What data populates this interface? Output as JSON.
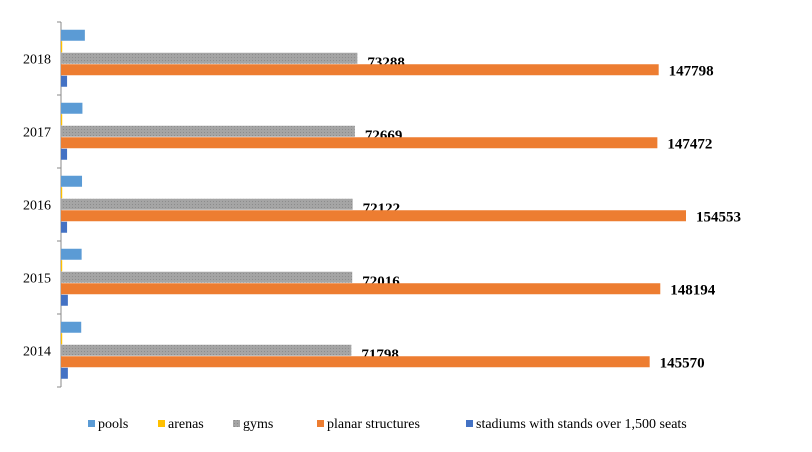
{
  "chart_data": {
    "type": "hbar",
    "categories": [
      "2014",
      "2015",
      "2016",
      "2017",
      "2018"
    ],
    "series": [
      {
        "name": "pools",
        "color": "#5b9bd5",
        "values": [
          5000,
          5100,
          5200,
          5300,
          5900
        ],
        "data_labels": false
      },
      {
        "name": "arenas",
        "color": "#ffc000",
        "values": [
          300,
          300,
          300,
          300,
          300
        ],
        "data_labels": false
      },
      {
        "name": "gyms",
        "color": "#a5a5a5",
        "values": [
          71798,
          72016,
          72122,
          72669,
          73288
        ],
        "data_labels": true
      },
      {
        "name": "planar structures",
        "color": "#ed7d31",
        "values": [
          145570,
          148194,
          154553,
          147472,
          147798
        ],
        "data_labels": true
      },
      {
        "name": "stadiums with stands over 1,500 seats",
        "color": "#4472c4",
        "values": [
          1700,
          1700,
          1500,
          1500,
          1500
        ],
        "data_labels": false
      }
    ]
  }
}
